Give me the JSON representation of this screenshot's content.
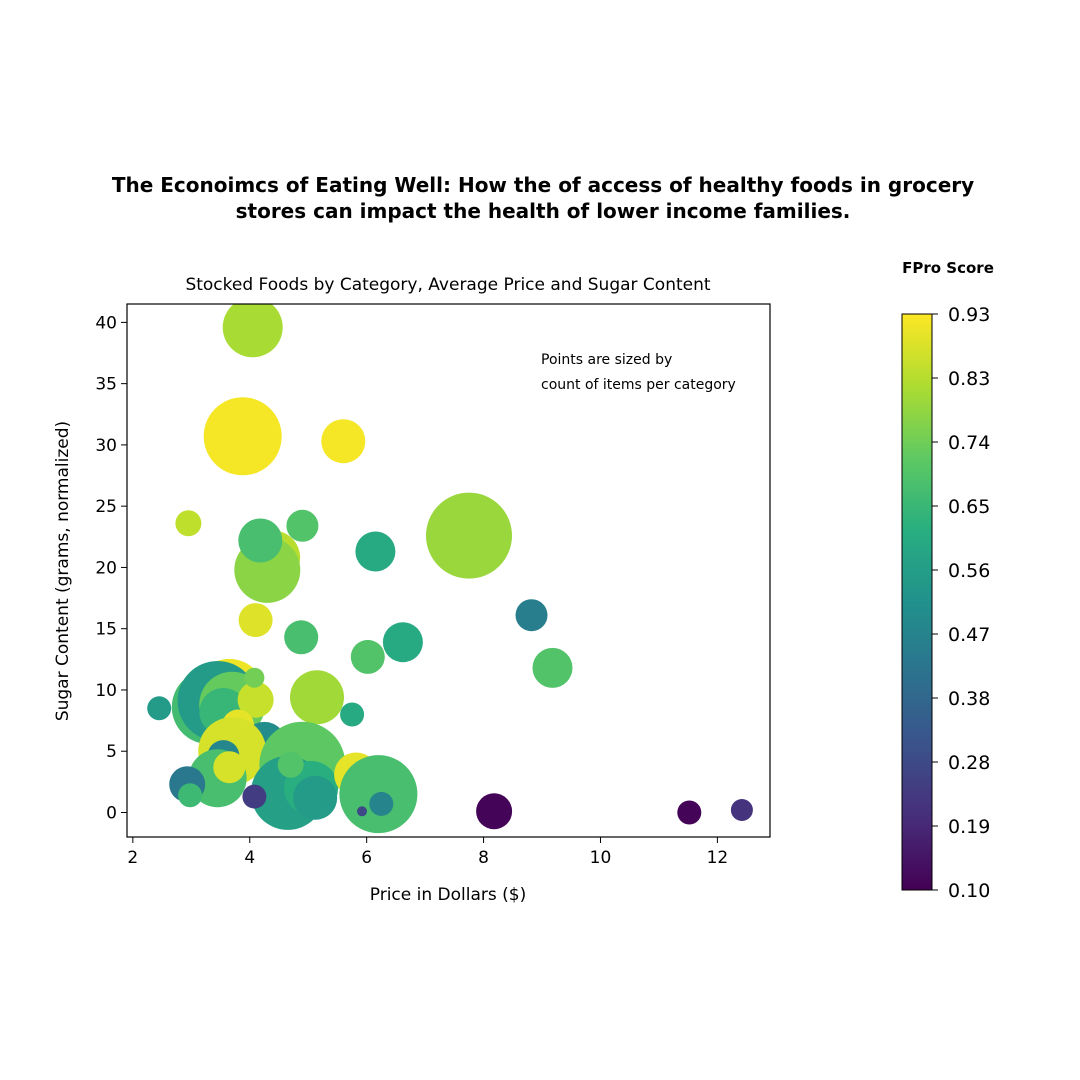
{
  "figure": {
    "suptitle_line1": "The Econoimcs of Eating Well:  How the of access of healthy foods in grocery",
    "suptitle_line2": "stores can impact the health of lower income families."
  },
  "chart_data": {
    "type": "scatter",
    "title": "Stocked Foods by Category, Average Price and Sugar Content",
    "xlabel": "Price in Dollars ($)",
    "ylabel": "Sugar Content (grams, normalized)",
    "xlim": [
      1.9,
      12.9
    ],
    "ylim": [
      -2,
      41.5
    ],
    "xticks": [
      2,
      4,
      6,
      8,
      10,
      12
    ],
    "yticks": [
      0,
      5,
      10,
      15,
      20,
      25,
      30,
      35,
      40
    ],
    "grid": false,
    "annotation_line1": "Points are sized by",
    "annotation_line2": "count of items per category",
    "colorbar": {
      "title": "FPro Score",
      "colormap": "viridis",
      "range": [
        0.1,
        0.93
      ],
      "ticks": [
        "0.10",
        "0.19",
        "0.28",
        "0.38",
        "0.47",
        "0.56",
        "0.65",
        "0.74",
        "0.83",
        "0.93"
      ]
    },
    "points": [
      {
        "x": 4.05,
        "y": 39.6,
        "size": 30,
        "fpro": 0.82
      },
      {
        "x": 3.88,
        "y": 30.7,
        "size": 39,
        "fpro": 0.92
      },
      {
        "x": 5.6,
        "y": 30.3,
        "size": 22,
        "fpro": 0.92
      },
      {
        "x": 7.75,
        "y": 22.6,
        "size": 43,
        "fpro": 0.8
      },
      {
        "x": 2.95,
        "y": 23.6,
        "size": 13,
        "fpro": 0.85
      },
      {
        "x": 4.9,
        "y": 23.4,
        "size": 16,
        "fpro": 0.7
      },
      {
        "x": 4.4,
        "y": 20.8,
        "size": 27,
        "fpro": 0.84
      },
      {
        "x": 4.3,
        "y": 19.8,
        "size": 33,
        "fpro": 0.78
      },
      {
        "x": 4.18,
        "y": 22.2,
        "size": 22,
        "fpro": 0.68
      },
      {
        "x": 6.15,
        "y": 21.3,
        "size": 20,
        "fpro": 0.6
      },
      {
        "x": 4.1,
        "y": 15.7,
        "size": 17,
        "fpro": 0.89
      },
      {
        "x": 8.82,
        "y": 16.1,
        "size": 16,
        "fpro": 0.45
      },
      {
        "x": 4.88,
        "y": 14.3,
        "size": 17,
        "fpro": 0.68
      },
      {
        "x": 6.62,
        "y": 13.9,
        "size": 20,
        "fpro": 0.6
      },
      {
        "x": 6.02,
        "y": 12.7,
        "size": 17,
        "fpro": 0.7
      },
      {
        "x": 9.18,
        "y": 11.8,
        "size": 20,
        "fpro": 0.7
      },
      {
        "x": 3.65,
        "y": 9.6,
        "size": 36,
        "fpro": 0.91
      },
      {
        "x": 5.15,
        "y": 9.4,
        "size": 27,
        "fpro": 0.81
      },
      {
        "x": 3.3,
        "y": 8.6,
        "size": 37,
        "fpro": 0.67
      },
      {
        "x": 3.45,
        "y": 9.1,
        "size": 40,
        "fpro": 0.55
      },
      {
        "x": 3.7,
        "y": 8.8,
        "size": 33,
        "fpro": 0.73
      },
      {
        "x": 3.55,
        "y": 8.2,
        "size": 24,
        "fpro": 0.65
      },
      {
        "x": 4.1,
        "y": 9.2,
        "size": 18,
        "fpro": 0.86
      },
      {
        "x": 2.45,
        "y": 8.5,
        "size": 12,
        "fpro": 0.55
      },
      {
        "x": 4.08,
        "y": 11.0,
        "size": 10,
        "fpro": 0.75
      },
      {
        "x": 3.8,
        "y": 7.1,
        "size": 16,
        "fpro": 0.9
      },
      {
        "x": 5.75,
        "y": 8.0,
        "size": 12,
        "fpro": 0.6
      },
      {
        "x": 4.25,
        "y": 5.6,
        "size": 22,
        "fpro": 0.5
      },
      {
        "x": 3.7,
        "y": 5.0,
        "size": 34,
        "fpro": 0.88
      },
      {
        "x": 3.55,
        "y": 4.6,
        "size": 16,
        "fpro": 0.48
      },
      {
        "x": 3.45,
        "y": 2.8,
        "size": 29,
        "fpro": 0.68
      },
      {
        "x": 4.9,
        "y": 3.9,
        "size": 43,
        "fpro": 0.72
      },
      {
        "x": 4.65,
        "y": 1.6,
        "size": 37,
        "fpro": 0.57
      },
      {
        "x": 5.05,
        "y": 2.0,
        "size": 27,
        "fpro": 0.62
      },
      {
        "x": 4.7,
        "y": 3.9,
        "size": 13,
        "fpro": 0.7
      },
      {
        "x": 3.65,
        "y": 3.7,
        "size": 16,
        "fpro": 0.88
      },
      {
        "x": 5.82,
        "y": 3.1,
        "size": 22,
        "fpro": 0.9
      },
      {
        "x": 6.2,
        "y": 1.5,
        "size": 39,
        "fpro": 0.68
      },
      {
        "x": 5.12,
        "y": 1.2,
        "size": 22,
        "fpro": 0.55
      },
      {
        "x": 2.93,
        "y": 2.3,
        "size": 18,
        "fpro": 0.43
      },
      {
        "x": 2.98,
        "y": 1.4,
        "size": 12,
        "fpro": 0.66
      },
      {
        "x": 4.08,
        "y": 1.3,
        "size": 12,
        "fpro": 0.25
      },
      {
        "x": 6.25,
        "y": 0.7,
        "size": 12,
        "fpro": 0.47
      },
      {
        "x": 5.92,
        "y": 0.1,
        "size": 5,
        "fpro": 0.28
      },
      {
        "x": 8.18,
        "y": 0.1,
        "size": 18,
        "fpro": 0.11
      },
      {
        "x": 11.52,
        "y": 0.0,
        "size": 12,
        "fpro": 0.11
      },
      {
        "x": 12.42,
        "y": 0.2,
        "size": 11,
        "fpro": 0.22
      }
    ]
  }
}
